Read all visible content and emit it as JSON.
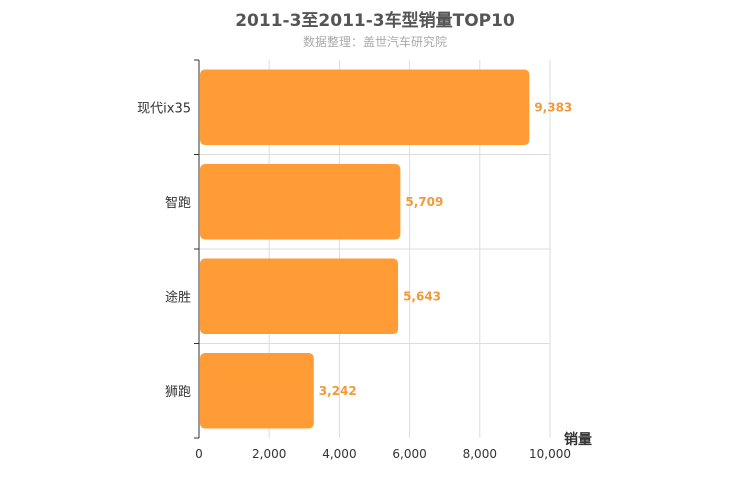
{
  "chart_data": {
    "type": "bar",
    "orientation": "horizontal",
    "title": "2011-3至2011-3车型销量TOP10",
    "subtitle": "数据整理：盖世汽车研究院",
    "categories": [
      "现代ix35",
      "智跑",
      "途胜",
      "狮跑"
    ],
    "values": [
      9383,
      5709,
      5643,
      3242
    ],
    "value_labels": [
      "9,383",
      "5,709",
      "5,643",
      "3,242"
    ],
    "xlabel": "销量",
    "xlim": [
      0,
      10000
    ],
    "x_ticks": [
      0,
      2000,
      4000,
      6000,
      8000,
      10000
    ],
    "x_tick_labels": [
      "0",
      "2,000",
      "4,000",
      "6,000",
      "8,000",
      "10,000"
    ],
    "grid": true,
    "colors": {
      "bar": "#ff9c35",
      "value_label": "#f29a3a",
      "grid": "#dddddd",
      "axis": "#333333"
    }
  }
}
